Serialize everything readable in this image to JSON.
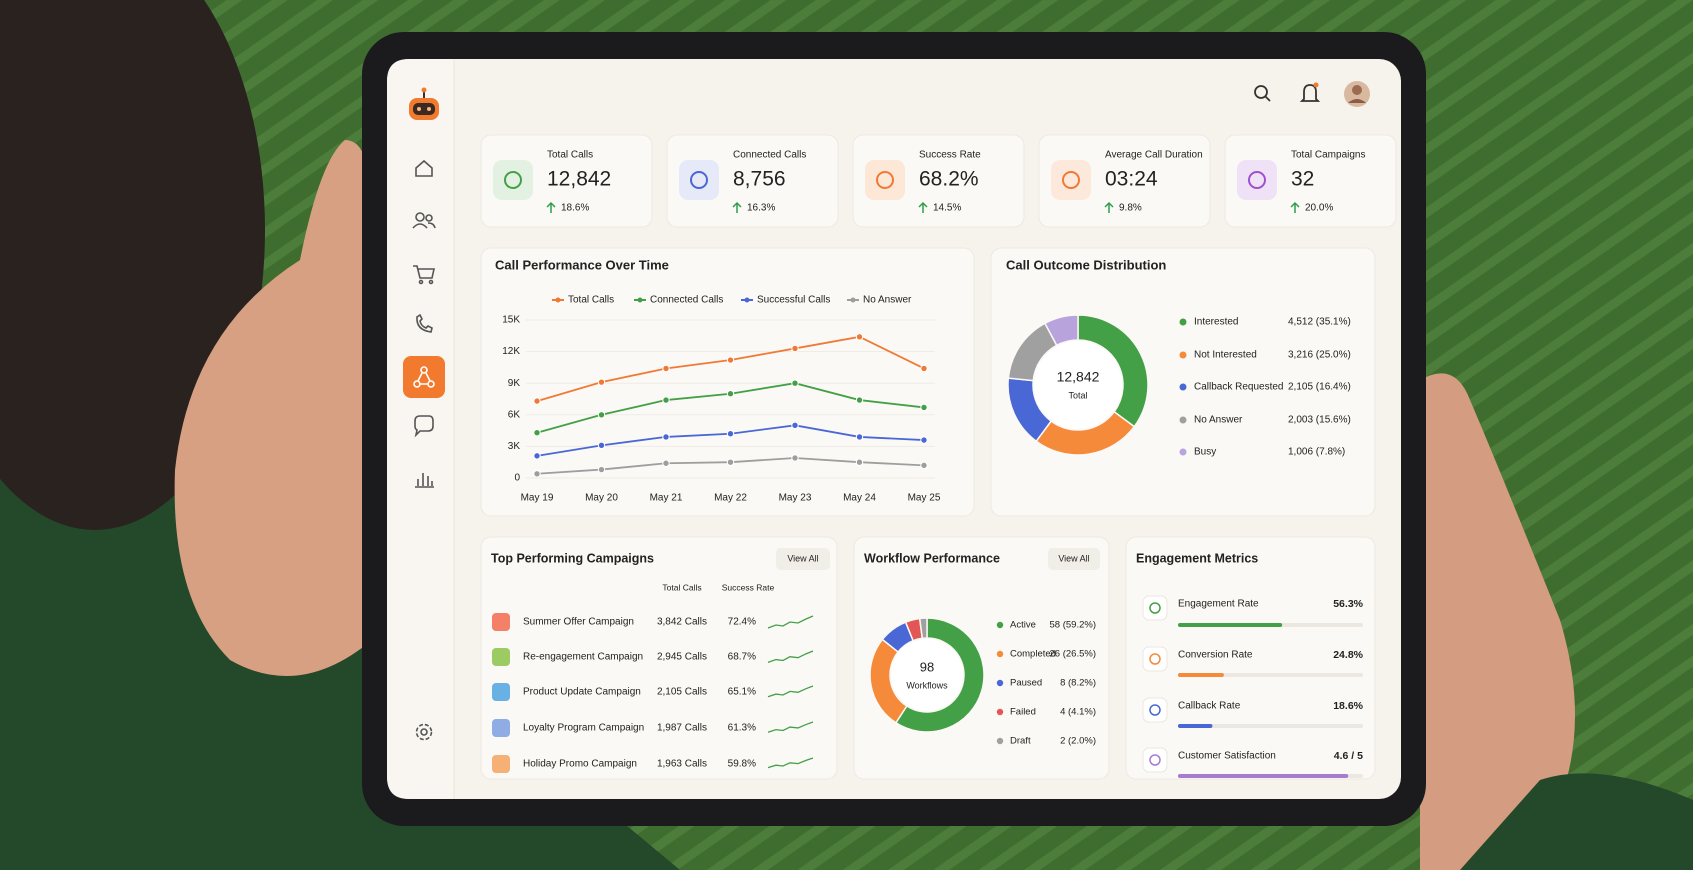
{
  "kpis": [
    {
      "label": "Total Calls",
      "value": "12,842",
      "change": "18.6%"
    },
    {
      "label": "Connected Calls",
      "value": "8,756",
      "change": "16.3%"
    },
    {
      "label": "Success Rate",
      "value": "68.2%",
      "change": "14.5%"
    },
    {
      "label": "Average Call Duration",
      "value": "03:24",
      "change": "9.8%"
    },
    {
      "label": "Total Campaigns",
      "value": "32",
      "change": "20.0%"
    }
  ],
  "line_chart": {
    "type": "line",
    "title": "Call Performance Over Time",
    "categories": [
      "May 19",
      "May 20",
      "May 21",
      "May 22",
      "May 23",
      "May 24",
      "May 25"
    ],
    "series": [
      {
        "name": "Total Calls",
        "color": "#f07a35",
        "values": [
          7300,
          9100,
          10400,
          11200,
          12300,
          13400,
          10400
        ]
      },
      {
        "name": "Connected Calls",
        "color": "#43a047",
        "values": [
          4300,
          6000,
          7400,
          8000,
          9000,
          7400,
          6700
        ]
      },
      {
        "name": "Successful Calls",
        "color": "#4a67d6",
        "values": [
          2100,
          3100,
          3900,
          4200,
          5000,
          3900,
          3600
        ]
      },
      {
        "name": "No Answer",
        "color": "#9e9e9e",
        "values": [
          400,
          800,
          1400,
          1500,
          1900,
          1500,
          1200
        ]
      }
    ],
    "ylim": [
      0,
      15000
    ],
    "yticks": [
      0,
      {
        "value": 3000,
        "label": "3K"
      },
      {
        "value": 6000,
        "label": "6K"
      },
      {
        "value": 9000,
        "label": "9K"
      },
      {
        "value": 12000,
        "label": "12K"
      },
      {
        "value": 15000,
        "label": "15K"
      }
    ],
    "grid": true
  },
  "outcome_chart": {
    "type": "pie",
    "title": "Call Outcome Distribution",
    "center_value": "12,842",
    "center_label": "Total",
    "categories": [
      "Interested",
      "Not Interested",
      "Callback Requested",
      "No Answer",
      "Busy"
    ],
    "values": [
      4512,
      3216,
      2105,
      2003,
      1006
    ],
    "value_labels": [
      "4,512 (35.1%)",
      "3,216 (25.0%)",
      "2,105 (16.4%)",
      "2,003 (15.6%)",
      "1,006 (7.8%)"
    ],
    "colors": [
      "#43a047",
      "#f58a3a",
      "#4a67d6",
      "#a0a0a0",
      "#b9a3dc"
    ]
  },
  "campaigns": {
    "title": "Top Performing Campaigns",
    "action": "View All",
    "columns": [
      "Total Calls",
      "Success Rate"
    ],
    "rows": [
      [
        "Summer Offer Campaign",
        "3,842 Calls",
        "72.4%"
      ],
      [
        "Re-engagement Campaign",
        "2,945 Calls",
        "68.7%"
      ],
      [
        "Product Update Campaign",
        "2,105 Calls",
        "65.1%"
      ],
      [
        "Loyalty Program Campaign",
        "1,987 Calls",
        "61.3%"
      ],
      [
        "Holiday Promo Campaign",
        "1,963 Calls",
        "59.8%"
      ]
    ]
  },
  "workflow_chart": {
    "type": "pie",
    "title": "Workflow Performance",
    "action": "View All",
    "center_value": "98",
    "center_label": "Workflows",
    "categories": [
      "Active",
      "Completed",
      "Paused",
      "Failed",
      "Draft"
    ],
    "values": [
      58,
      26,
      8,
      4,
      2
    ],
    "value_labels": [
      "58 (59.2%)",
      "26 (26.5%)",
      "8 (8.2%)",
      "4 (4.1%)",
      "2 (2.0%)"
    ],
    "colors": [
      "#43a047",
      "#f58a3a",
      "#4a67d6",
      "#e35656",
      "#a0a0a0"
    ]
  },
  "engagement": {
    "title": "Engagement Metrics",
    "metrics": [
      {
        "name": "Engagement Rate",
        "value": 56.3,
        "label": "56.3%",
        "max": 100,
        "color": "#43a047"
      },
      {
        "name": "Conversion Rate",
        "value": 24.8,
        "label": "24.8%",
        "max": 100,
        "color": "#f58a3a"
      },
      {
        "name": "Callback Rate",
        "value": 18.6,
        "label": "18.6%",
        "max": 100,
        "color": "#4a67d6"
      },
      {
        "name": "Customer Satisfaction",
        "value": 4.6,
        "label": "4.6 / 5",
        "max": 5,
        "color": "#a77bd0"
      }
    ]
  }
}
